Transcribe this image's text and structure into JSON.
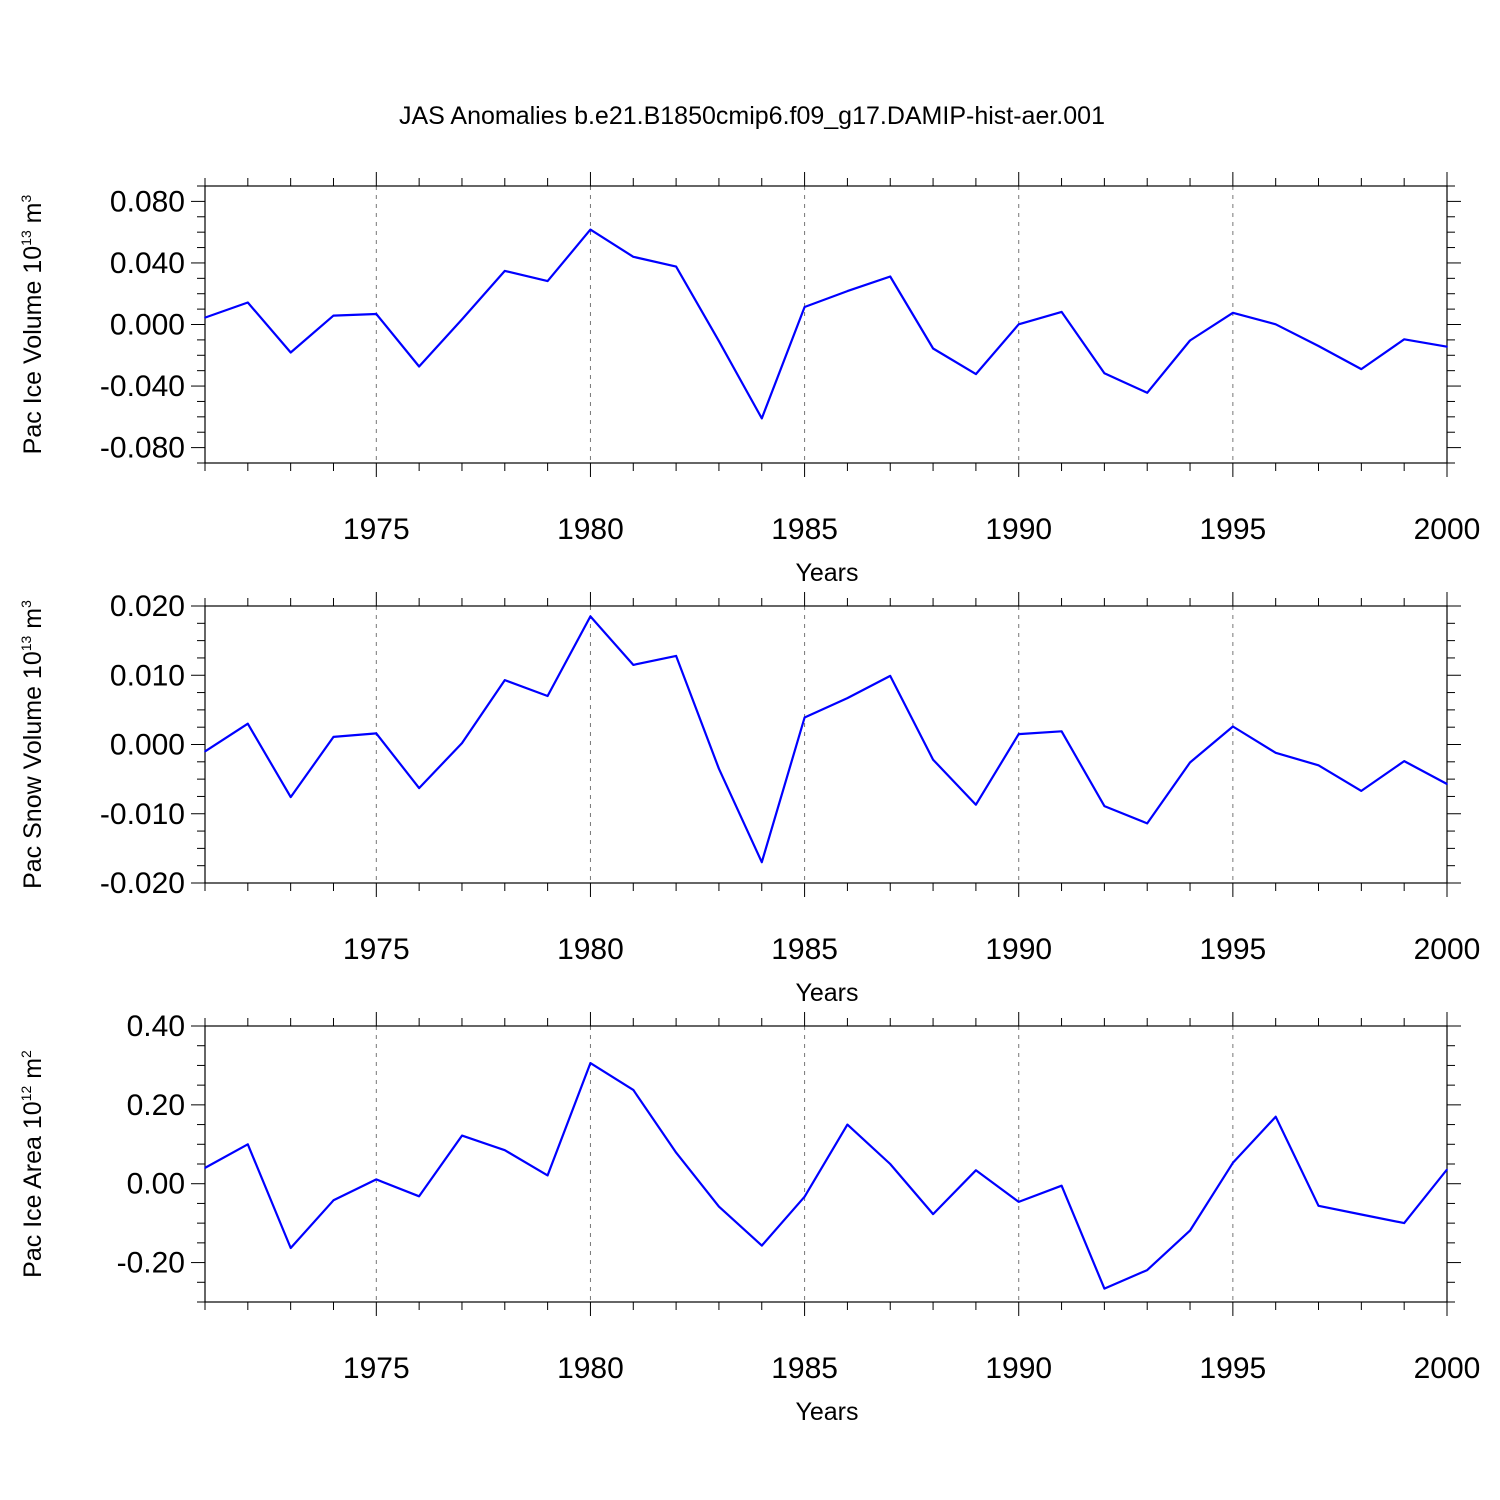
{
  "title": "JAS Anomalies b.e21.B1850cmip6.f09_g17.DAMIP-hist-aer.001",
  "line_color": "#0000ff",
  "chart_data": [
    {
      "type": "line",
      "title": "",
      "xlabel": "Years",
      "ylabel_main": "Pac Ice Volume 10",
      "ylabel_exp": "13",
      "ylabel_unit": " m",
      "ylabel_unit_exp": "3",
      "xlim": [
        1971,
        2000
      ],
      "ylim": [
        -0.09,
        0.09
      ],
      "xticks": [
        1975,
        1980,
        1985,
        1990,
        1995,
        2000
      ],
      "xtick_labels": [
        "1975",
        "1980",
        "1985",
        "1990",
        "1995",
        "2000"
      ],
      "yticks": [
        0.08,
        0.04,
        0.0,
        -0.04,
        -0.08
      ],
      "ytick_labels": [
        "0.080",
        "0.040",
        "0.000",
        "-0.040",
        "-0.080"
      ],
      "grid": "vertical dashed at major x ticks",
      "x": [
        1971,
        1972,
        1973,
        1974,
        1975,
        1976,
        1977,
        1978,
        1979,
        1980,
        1981,
        1982,
        1983,
        1984,
        1985,
        1986,
        1987,
        1988,
        1989,
        1990,
        1991,
        1992,
        1993,
        1994,
        1995,
        1996,
        1997,
        1998,
        1999,
        2000
      ],
      "series": [
        {
          "values": [
            0.0045,
            0.0143,
            -0.0182,
            0.0058,
            0.0068,
            -0.0273,
            0.0033,
            0.0348,
            0.0282,
            0.0617,
            0.044,
            0.0376,
            -0.0108,
            -0.061,
            0.0114,
            0.0217,
            0.0312,
            -0.0156,
            -0.0322,
            0.0001,
            0.0082,
            -0.0317,
            -0.0444,
            -0.0104,
            0.0076,
            0.0001,
            -0.014,
            -0.029,
            -0.0096,
            -0.0144
          ]
        }
      ]
    },
    {
      "type": "line",
      "title": "",
      "xlabel": "Years",
      "ylabel_main": "Pac Snow Volume 10",
      "ylabel_exp": "13",
      "ylabel_unit": " m",
      "ylabel_unit_exp": "3",
      "xlim": [
        1971,
        2000
      ],
      "ylim": [
        -0.02,
        0.02
      ],
      "xticks": [
        1975,
        1980,
        1985,
        1990,
        1995,
        2000
      ],
      "xtick_labels": [
        "1975",
        "1980",
        "1985",
        "1990",
        "1995",
        "2000"
      ],
      "yticks": [
        0.02,
        0.01,
        0.0,
        -0.01,
        -0.02
      ],
      "ytick_labels": [
        "0.020",
        "0.010",
        "0.000",
        "-0.010",
        "-0.020"
      ],
      "grid": "vertical dashed at major x ticks",
      "x": [
        1971,
        1972,
        1973,
        1974,
        1975,
        1976,
        1977,
        1978,
        1979,
        1980,
        1981,
        1982,
        1983,
        1984,
        1985,
        1986,
        1987,
        1988,
        1989,
        1990,
        1991,
        1992,
        1993,
        1994,
        1995,
        1996,
        1997,
        1998,
        1999,
        2000
      ],
      "series": [
        {
          "values": [
            -0.001,
            0.003,
            -0.0076,
            0.0011,
            0.0016,
            -0.0063,
            0.0002,
            0.0093,
            0.007,
            0.0185,
            0.0115,
            0.0128,
            -0.0035,
            -0.017,
            0.0039,
            0.0067,
            0.0099,
            -0.0022,
            -0.0087,
            0.0015,
            0.0019,
            -0.0089,
            -0.0114,
            -0.0026,
            0.0026,
            -0.0012,
            -0.003,
            -0.0067,
            -0.0024,
            -0.0057
          ]
        }
      ]
    },
    {
      "type": "line",
      "title": "",
      "xlabel": "Years",
      "ylabel_main": "Pac Ice Area 10",
      "ylabel_exp": "12",
      "ylabel_unit": " m",
      "ylabel_unit_exp": "2",
      "xlim": [
        1971,
        2000
      ],
      "ylim": [
        -0.3,
        0.4
      ],
      "xticks": [
        1975,
        1980,
        1985,
        1990,
        1995,
        2000
      ],
      "xtick_labels": [
        "1975",
        "1980",
        "1985",
        "1990",
        "1995",
        "2000"
      ],
      "yticks": [
        0.4,
        0.2,
        0.0,
        -0.2
      ],
      "ytick_labels": [
        "0.40",
        "0.20",
        "0.00",
        "-0.20"
      ],
      "grid": "vertical dashed at major x ticks",
      "x": [
        1971,
        1972,
        1973,
        1974,
        1975,
        1976,
        1977,
        1978,
        1979,
        1980,
        1981,
        1982,
        1983,
        1984,
        1985,
        1986,
        1987,
        1988,
        1989,
        1990,
        1991,
        1992,
        1993,
        1994,
        1995,
        1996,
        1997,
        1998,
        1999,
        2000
      ],
      "series": [
        {
          "values": [
            0.04,
            0.1,
            -0.163,
            -0.042,
            0.011,
            -0.032,
            0.122,
            0.085,
            0.021,
            0.306,
            0.238,
            0.079,
            -0.058,
            -0.157,
            -0.033,
            0.15,
            0.05,
            -0.077,
            0.034,
            -0.046,
            -0.005,
            -0.266,
            -0.219,
            -0.119,
            0.053,
            0.17,
            -0.056,
            -0.078,
            -0.1,
            0.036
          ]
        }
      ]
    }
  ]
}
